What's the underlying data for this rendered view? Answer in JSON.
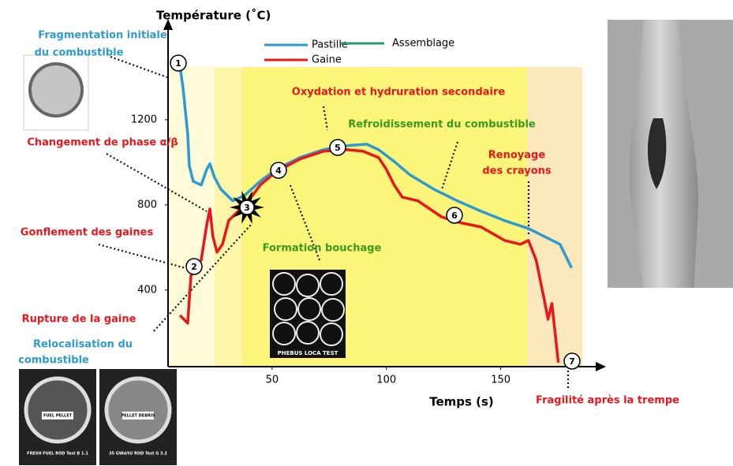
{
  "chart_data": {
    "type": "line",
    "title": "Température (˚C)",
    "x_label": "Temps (s)",
    "xlim": [
      4.5,
      195
    ],
    "ylim": [
      40,
      1670
    ],
    "xticks": [
      50,
      100,
      150
    ],
    "yticks": [
      400,
      800,
      1200
    ],
    "grid": false,
    "series": [
      {
        "name": "Pastille",
        "color": "#2e9bd0",
        "x": [
          9.7,
          11.0,
          13.1,
          13.8,
          15.5,
          19.0,
          21.4,
          22.8,
          24.8,
          27.6,
          32.8,
          37.9,
          44.8,
          51.7,
          62.1,
          72.4,
          82.8,
          91.4,
          96.6,
          103.4,
          110.3,
          120.7,
          131.0,
          141.4,
          151.7,
          162.1,
          169.0,
          175.9,
          181.0
        ],
        "values": [
          1448,
          1356,
          1133,
          985,
          911,
          893,
          967,
          993,
          930,
          874,
          819,
          844,
          911,
          967,
          1022,
          1059,
          1078,
          1085,
          1059,
          1004,
          941,
          874,
          819,
          770,
          726,
          689,
          652,
          615,
          504
        ]
      },
      {
        "name": "Gaine",
        "color": "#e8171b",
        "x": [
          9.7,
          13.1,
          14.5,
          16.6,
          19.0,
          21.4,
          22.8,
          24.1,
          25.9,
          28.3,
          31.0,
          34.5,
          39.7,
          44.8,
          51.7,
          62.1,
          72.4,
          82.8,
          89.7,
          96.6,
          100.0,
          103.4,
          106.9,
          113.8,
          119.0,
          124.1,
          131.0,
          141.4,
          151.7,
          158.6,
          162.1,
          165.5,
          169.0,
          170.7,
          172.4,
          174.1,
          175.2
        ],
        "values": [
          281,
          244,
          467,
          504,
          541,
          707,
          781,
          652,
          578,
          615,
          726,
          763,
          819,
          893,
          956,
          1015,
          1052,
          1059,
          1052,
          1022,
          967,
          893,
          837,
          819,
          781,
          744,
          719,
          696,
          633,
          615,
          633,
          541,
          356,
          263,
          337,
          170,
          59
        ]
      },
      {
        "name": "Assemblage",
        "color": "#2a9d6f",
        "x": [],
        "values": []
      }
    ],
    "markers": [
      "1",
      "2",
      "3",
      "4",
      "5",
      "6",
      "7"
    ],
    "annotations": [
      {
        "text": "Fragmentation initiale",
        "color": "#2e9bd0"
      },
      {
        "text": "du combustible",
        "color": "#2e9bd0"
      },
      {
        "text": "Changement de phase α/β",
        "color": "#e8171b"
      },
      {
        "text": "Gonflement des gaines",
        "color": "#e8171b"
      },
      {
        "text": "Rupture de la gaine",
        "color": "#e8171b"
      },
      {
        "text": "Relocalisation du",
        "color": "#2e9bd0"
      },
      {
        "text": "combustible",
        "color": "#2e9bd0"
      },
      {
        "text": "Oxydation et hydruration secondaire",
        "color": "#e8171b"
      },
      {
        "text": "Refroidissement du combustible",
        "color": "#3a9a1e"
      },
      {
        "text": "Renoyage",
        "color": "#e8171b"
      },
      {
        "text": "des crayons",
        "color": "#e8171b"
      },
      {
        "text": "Formation bouchage",
        "color": "#3a9a1e"
      },
      {
        "text": "Fragilité après la trempe",
        "color": "#e8171b"
      }
    ],
    "photo_labels": [
      "PHEBUS LOCA TEST",
      "FUEL PELLET",
      "FRESH FUEL ROD Test B 1.1",
      "PELLET DEBRIS",
      "35 GWd/tU ROD Test G 3.2"
    ]
  }
}
